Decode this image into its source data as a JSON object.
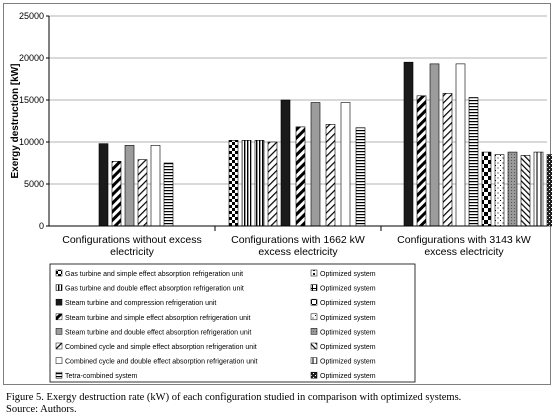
{
  "chart_data": {
    "type": "bar",
    "ylabel": "Exergy destruction [kW]",
    "ylim": [
      0,
      25000
    ],
    "yticks": [
      0,
      5000,
      10000,
      15000,
      20000,
      25000
    ],
    "grid": true,
    "legend_position": "bottom",
    "groups": [
      {
        "label": "Configurations without excess electricity",
        "label_lines": [
          "Configurations without excess",
          "electricity"
        ],
        "bars": [
          {
            "series": 2,
            "value": 9800
          },
          {
            "series": 3,
            "value": 7700
          },
          {
            "series": 4,
            "value": 9600
          },
          {
            "series": 5,
            "value": 7900
          },
          {
            "series": 6,
            "value": 9600
          },
          {
            "series": 7,
            "value": 7500
          }
        ]
      },
      {
        "label": "Configurations with 1662 kW excess electricity",
        "label_lines": [
          "Configurations with 1662 kW",
          "excess electricity"
        ],
        "bars": [
          {
            "series": 0,
            "value": 10200
          },
          {
            "series": 1,
            "value": 10200
          },
          {
            "series": 1,
            "value": 10200
          },
          {
            "series": 5,
            "value": 10000
          },
          {
            "series": 2,
            "value": 15000
          },
          {
            "series": 3,
            "value": 11800
          },
          {
            "series": 4,
            "value": 14700
          },
          {
            "series": 5,
            "value": 12100
          },
          {
            "series": 6,
            "value": 14700
          },
          {
            "series": 7,
            "value": 11700
          }
        ]
      },
      {
        "label": "Configurations with 3143 kW excess electricity",
        "label_lines": [
          "Configurations with 3143 kW",
          "excess electricity"
        ],
        "bars": [
          {
            "series": 2,
            "value": 19500
          },
          {
            "series": 3,
            "value": 15500
          },
          {
            "series": 4,
            "value": 19300
          },
          {
            "series": 5,
            "value": 15800
          },
          {
            "series": 6,
            "value": 19300
          },
          {
            "series": 7,
            "value": 15300
          },
          {
            "series": 10,
            "value": 8800
          },
          {
            "series": 11,
            "value": 8500
          },
          {
            "series": 12,
            "value": 8800
          },
          {
            "series": 13,
            "value": 8400
          },
          {
            "series": 14,
            "value": 8800
          },
          {
            "series": 15,
            "value": 8500
          }
        ]
      }
    ],
    "series": [
      {
        "name": "Gas turbine and simple effect absorption refrigeration unit",
        "pattern": "checker"
      },
      {
        "name": "Gas turbine and double effect absorption refrigeration unit",
        "pattern": "vlines"
      },
      {
        "name": "Steam turbine and compression refrigeration unit",
        "pattern": "solid-black"
      },
      {
        "name": "Steam turbine and simple effect absorption refrigeration unit",
        "pattern": "diag-bold"
      },
      {
        "name": "Steam turbine and double effect absorption refrigeration unit",
        "pattern": "solid-gray"
      },
      {
        "name": "Combined cycle and simple effect absorption refrigeration unit",
        "pattern": "diag-light"
      },
      {
        "name": "Combined cycle and double effect absorption refrigeration unit",
        "pattern": "white"
      },
      {
        "name": "Tetra-combined system",
        "pattern": "hlines"
      },
      {
        "name": "Optimized system",
        "pattern": "opt-dots"
      },
      {
        "name": "Optimized system",
        "pattern": "opt-grid"
      },
      {
        "name": "Optimized system",
        "pattern": "opt-checker"
      },
      {
        "name": "Optimized system",
        "pattern": "opt-sparse"
      },
      {
        "name": "Optimized system",
        "pattern": "opt-gray"
      },
      {
        "name": "Optimized system",
        "pattern": "opt-diag"
      },
      {
        "name": "Optimized system",
        "pattern": "opt-stripes"
      },
      {
        "name": "Optimized system",
        "pattern": "opt-dark"
      }
    ]
  },
  "caption": "Figure 5. Exergy destruction rate (kW) of each configuration studied in comparison with optimized systems.",
  "source": "Source: Authors."
}
